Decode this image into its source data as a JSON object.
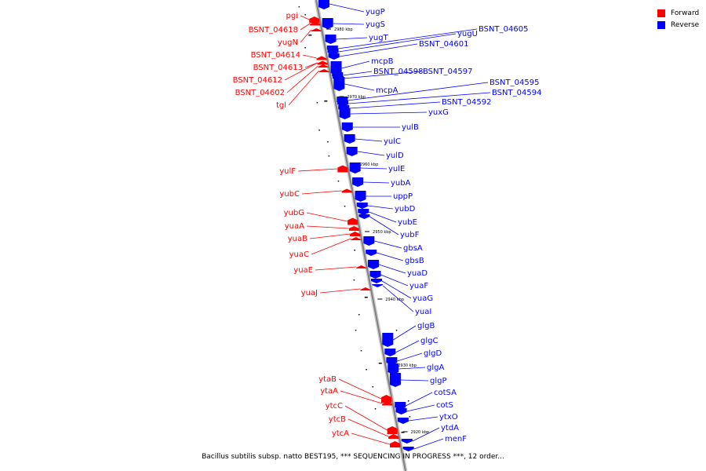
{
  "legend": {
    "forward": {
      "label": "Forward",
      "color": "#ff0000"
    },
    "reverse": {
      "label": "Reverse",
      "color": "#0000ff"
    }
  },
  "caption": "Bacillus subtilis subsp. natto BEST195, *** SEQUENCING IN PROGRESS ***, 12 order...",
  "ticks": [
    "2980 kbp",
    "2970 kbp",
    "2960 kbp",
    "2950 kbp",
    "2940 kbp",
    "2930 kbp",
    "2920 kbp"
  ],
  "forward_genes": [
    "pgi",
    "BSNT_04618",
    "yugN",
    "BSNT_04614",
    "BSNT_04613",
    "BSNT_04612",
    "BSNT_04602",
    "tgl",
    "yulF",
    "yubC",
    "yubG",
    "yuaA",
    "yuaB",
    "yuaC",
    "yuaE",
    "yuaJ",
    "ytaB",
    "ytaA",
    "ytcC",
    "ytcB",
    "ytcA"
  ],
  "reverse_genes": [
    "yugP",
    "yugS",
    "yugT",
    "yugU",
    "BSNT_04605",
    "BSNT_04601",
    "mcpB",
    "BSNT_04598",
    "BSNT_04597",
    "mcpA",
    "BSNT_04595",
    "BSNT_04594",
    "BSNT_04592",
    "yuxG",
    "yulB",
    "yulC",
    "yulD",
    "yulE",
    "yubA",
    "uppP",
    "yubD",
    "yubE",
    "yubF",
    "gbsA",
    "gbsB",
    "yuaD",
    "yuaF",
    "yuaG",
    "yuaI",
    "glgB",
    "glgC",
    "glgD",
    "glgA",
    "glgP",
    "cotSA",
    "cotS",
    "ytxO",
    "ytdA",
    "menF"
  ]
}
